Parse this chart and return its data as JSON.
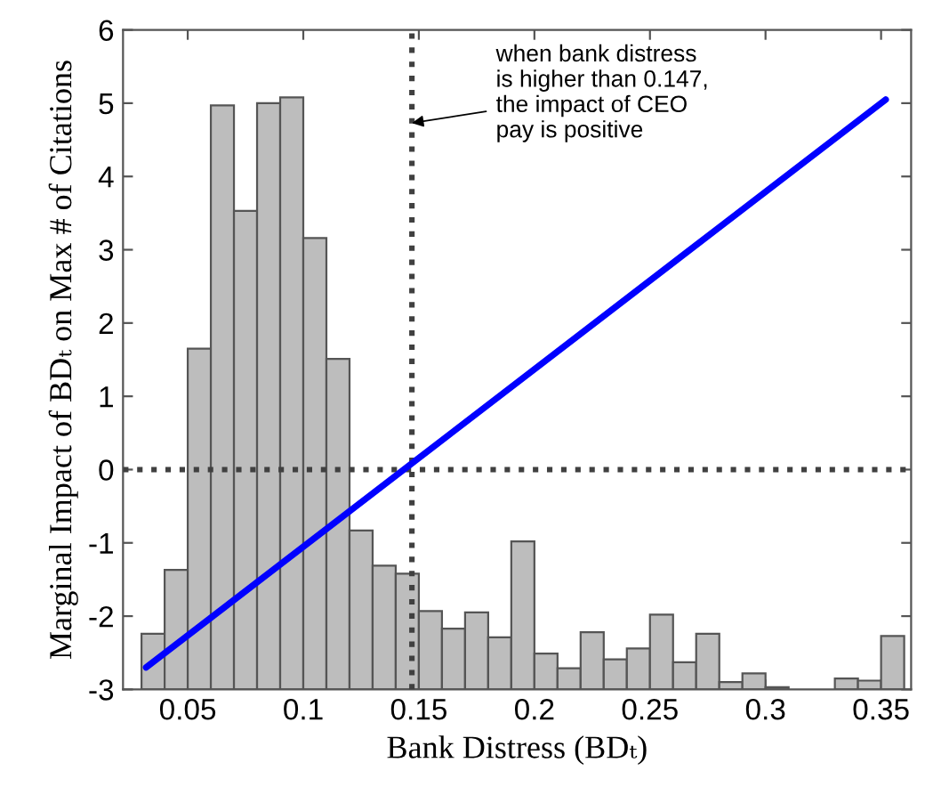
{
  "chart_data": {
    "type": "bar",
    "xlabel": "Bank Distress (BDₜ)",
    "ylabel": "Marginal Impact of BDₜ on Max # of Citations",
    "xlim": [
      0.022,
      0.363
    ],
    "ylim": [
      -3,
      6
    ],
    "xticks": [
      0.05,
      0.1,
      0.15,
      0.2,
      0.25,
      0.3,
      0.35
    ],
    "yticks": [
      -3,
      -2,
      -1,
      0,
      1,
      2,
      3,
      4,
      5,
      6
    ],
    "grid": false,
    "legend": false,
    "series": [
      {
        "color": "#bdbdbd",
        "x": [
          0.035,
          0.045,
          0.055,
          0.065,
          0.075,
          0.085,
          0.095,
          0.105,
          0.115,
          0.125,
          0.135,
          0.145,
          0.155,
          0.165,
          0.175,
          0.185,
          0.195,
          0.205,
          0.215,
          0.225,
          0.235,
          0.245,
          0.255,
          0.265,
          0.275,
          0.285,
          0.295,
          0.305,
          0.315,
          0.325,
          0.335,
          0.345,
          0.355
        ],
        "base": [
          -3,
          -3,
          -3,
          -3,
          -3,
          -3,
          -3,
          -3,
          -3,
          -3,
          -3,
          -3,
          -3,
          -3,
          -3,
          -3,
          -3,
          -3,
          -3,
          -3,
          -3,
          -3,
          -3,
          -3,
          -3,
          -3,
          -3,
          -3,
          null,
          null,
          -3,
          -3,
          -3
        ],
        "values": [
          0.76,
          1.63,
          4.65,
          7.97,
          6.53,
          8.0,
          8.08,
          6.16,
          4.51,
          2.17,
          1.69,
          1.58,
          1.07,
          0.83,
          1.05,
          0.71,
          2.02,
          0.49,
          0.29,
          0.78,
          0.41,
          0.56,
          1.02,
          0.37,
          0.76,
          0.1,
          0.22,
          0.03,
          null,
          null,
          0.15,
          0.12,
          0.73
        ]
      },
      {
        "type": "line",
        "color": "#0000ff",
        "x": [
          0.032,
          0.352
        ],
        "values": [
          -2.7,
          5.05
        ]
      }
    ],
    "ref_lines": [
      {
        "axis": "x",
        "value": 0.147,
        "color": "#404040",
        "line_style": "dotted"
      },
      {
        "axis": "y",
        "value": 0,
        "color": "#404040",
        "line_style": "dotted"
      }
    ],
    "annotations": [
      {
        "text": "when bank distress\nis higher than 0.147,\nthe impact of CEO\npay is positive",
        "x": 0.147,
        "y": 4.73
      }
    ]
  }
}
